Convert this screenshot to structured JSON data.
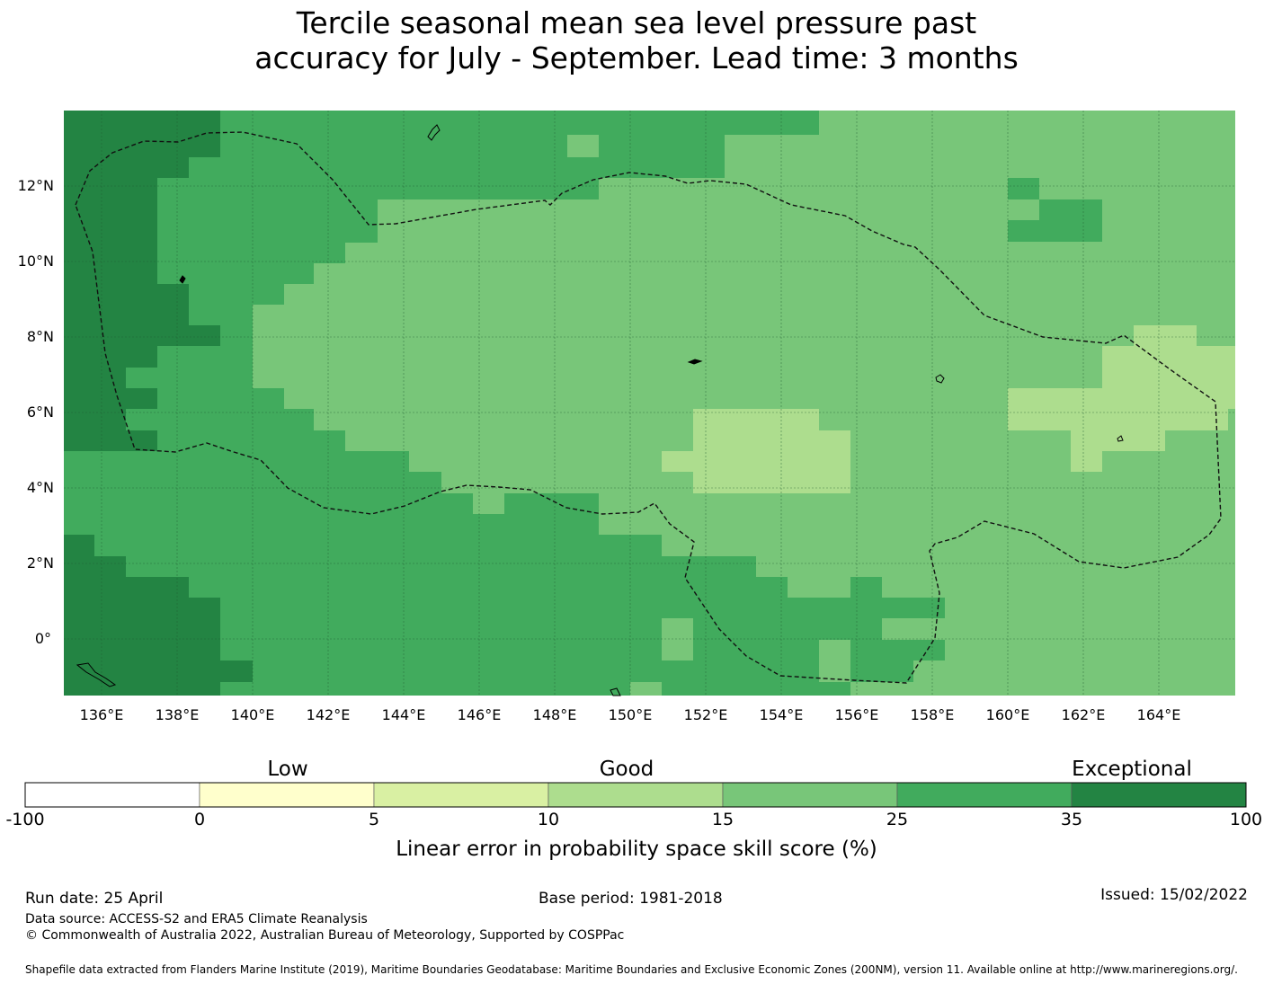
{
  "title": {
    "line1": "Tercile seasonal mean sea level pressure past",
    "line2": "accuracy for July - September. Lead time: 3 months"
  },
  "map": {
    "lat_labels": [
      "12°N",
      "10°N",
      "8°N",
      "6°N",
      "4°N",
      "2°N",
      "0°"
    ],
    "lon_labels": [
      "136°E",
      "138°E",
      "140°E",
      "142°E",
      "144°E",
      "146°E",
      "148°E",
      "150°E",
      "152°E",
      "154°E",
      "156°E",
      "158°E",
      "160°E",
      "162°E",
      "164°E"
    ],
    "lon_range": [
      134,
      165
    ],
    "lat_range": [
      -1.5,
      14
    ],
    "grid_lines": true,
    "boundary_style": "dashed",
    "colors": {
      "c35": "#238443",
      "c25": "#41ab5d",
      "c15": "#78c679",
      "c10": "#addd8e"
    }
  },
  "colorbar": {
    "category_labels": [
      "Low",
      "Good",
      "Exceptional"
    ],
    "tick_labels": [
      "-100",
      "0",
      "5",
      "10",
      "15",
      "25",
      "35",
      "100"
    ],
    "colors": [
      "#ffffff",
      "#ffffcc",
      "#d9f0a3",
      "#addd8e",
      "#78c679",
      "#41ab5d",
      "#238443"
    ],
    "title": "Linear error in probability space skill score (%)"
  },
  "footer": {
    "run_date": "Run date: 25 April",
    "base_period": "Base period: 1981-2018",
    "issued": "Issued: 15/02/2022",
    "data_source": "Data source: ACCESS-S2 and ERA5 Climate Reanalysis",
    "copyright": "© Commonwealth of Australia 2022, Australian Bureau of Meteorology, Supported by COSPPac",
    "shapefile": "Shapefile data extracted from Flanders Marine Institute (2019), Maritime Boundaries Geodatabase: Maritime Boundaries and Exclusive Economic Zones (200NM), version 11. Available online at http://www.marineregions.org/."
  }
}
